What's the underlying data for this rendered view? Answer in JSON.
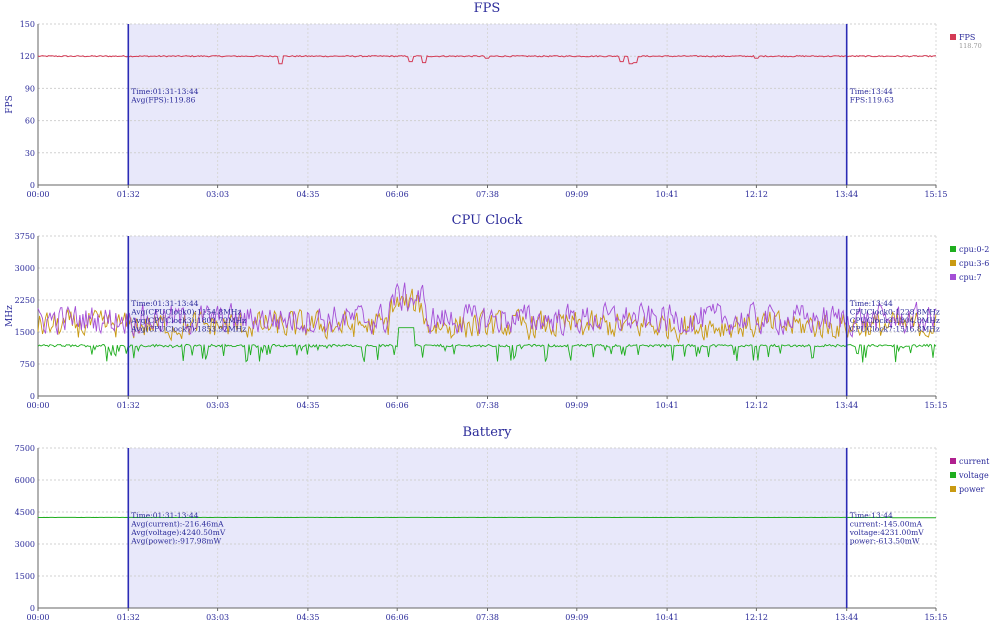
{
  "chart_data": [
    {
      "type": "line",
      "title": "FPS",
      "xlabel": "",
      "ylabel": "FPS",
      "ylim": [
        0,
        150
      ],
      "yticks": [
        "0",
        "30",
        "60",
        "90",
        "120",
        "150"
      ],
      "xticks": [
        "00:00",
        "01:32",
        "03:03",
        "04:35",
        "06:06",
        "07:38",
        "09:09",
        "10:41",
        "12:12",
        "13:44",
        "15:15"
      ],
      "grid": true,
      "legend": "right",
      "selection": {
        "start": "01:32",
        "end": "13:44",
        "shade": "#e8e8fa",
        "line_color": "#2b2bb5"
      },
      "annotation_range": [
        "Time:01:31-13:44",
        "Avg(FPS):119.86"
      ],
      "annotation_cursor": [
        "Time:13:44",
        "FPS:119.63"
      ],
      "series": [
        {
          "name": "FPS",
          "value_label": "118.70",
          "color": "#d43b55",
          "base": 120,
          "noise": 0.6,
          "dips": [
            [
              0.27,
              113
            ],
            [
              0.415,
              115
            ],
            [
              0.43,
              114
            ],
            [
              0.65,
              115
            ],
            [
              0.66,
              113
            ],
            [
              0.665,
              114
            ],
            [
              0.5,
              118
            ],
            [
              0.8,
              118
            ]
          ]
        }
      ]
    },
    {
      "type": "line",
      "title": "CPU Clock",
      "xlabel": "",
      "ylabel": "MHz",
      "ylim": [
        0,
        3750
      ],
      "yticks": [
        "0",
        "750",
        "1500",
        "2250",
        "3000",
        "3750"
      ],
      "xticks": [
        "00:00",
        "01:32",
        "03:03",
        "04:35",
        "06:06",
        "07:38",
        "09:09",
        "10:41",
        "12:12",
        "13:44",
        "15:15"
      ],
      "grid": true,
      "legend": "right",
      "selection": {
        "start": "01:32",
        "end": "13:44",
        "shade": "#e8e8fa",
        "line_color": "#2b2bb5"
      },
      "annotation_range": [
        "Time:01:31-13:44",
        "Avg(CPUClock0):1154.8MHz",
        "Avg(CPUClock3):1802.72MHz",
        "Avg(CPUClock7):1853.92MHz"
      ],
      "annotation_cursor": [
        "Time:13:44",
        "CPUClock0:1228.8MHz",
        "CPUClock3:1804.8MHz",
        "CPUClock7:1516.8MHz"
      ],
      "series": [
        {
          "name": "cpu:0-2",
          "color": "#1fae1f",
          "base": 1180,
          "noise": 160,
          "low": 750,
          "high": 1700
        },
        {
          "name": "cpu:3-6",
          "color": "#c99a12",
          "base": 1650,
          "noise": 450,
          "low": 800,
          "high": 2700
        },
        {
          "name": "cpu:7",
          "color": "#a44fd6",
          "base": 1800,
          "noise": 480,
          "low": 900,
          "high": 2900
        }
      ]
    },
    {
      "type": "line",
      "title": "Battery",
      "xlabel": "",
      "ylabel": "",
      "ylim": [
        0,
        7500
      ],
      "yticks": [
        "0",
        "1500",
        "3000",
        "4500",
        "6000",
        "7500"
      ],
      "xticks": [
        "00:00",
        "01:32",
        "03:03",
        "04:35",
        "06:06",
        "07:38",
        "09:09",
        "10:41",
        "12:12",
        "13:44",
        "15:15"
      ],
      "grid": true,
      "legend": "right",
      "selection": {
        "start": "01:32",
        "end": "13:44",
        "shade": "#e8e8fa",
        "line_color": "#2b2bb5"
      },
      "annotation_range": [
        "Time:01:31-13:44",
        "Avg(current):-216.46mA",
        "Avg(voltage):4240.50mV",
        "Avg(power):-917.98mW"
      ],
      "annotation_cursor": [
        "Time:13:44",
        "current:-145.00mA",
        "voltage:4231.00mV",
        "power:-613.50mW"
      ],
      "series": [
        {
          "name": "current",
          "color": "#b0208f"
        },
        {
          "name": "voltage",
          "color": "#1fae1f",
          "base": 4245,
          "noise": 3,
          "end": 4231
        },
        {
          "name": "power",
          "color": "#c99a12"
        }
      ]
    }
  ]
}
